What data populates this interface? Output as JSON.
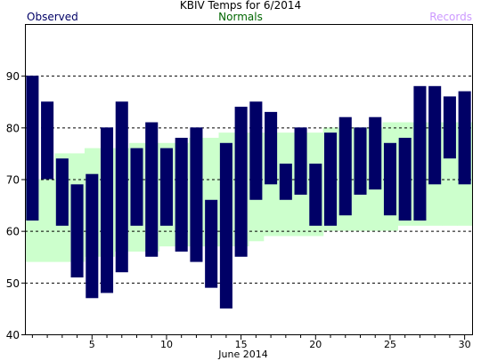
{
  "chart_data": {
    "type": "bar",
    "title": "KBIV Temps for 6/2014",
    "xlabel": "June 2014",
    "ylabel": "",
    "legend": {
      "observed": "Observed",
      "normals": "Normals",
      "records": "Records"
    },
    "colors": {
      "observed": "#000066",
      "normals_band": "#ccffcc",
      "normals_text": "#006600",
      "records_text": "#cc99ff",
      "grid": "#000000"
    },
    "xlim": [
      0.5,
      30.5
    ],
    "ylim": [
      40,
      100
    ],
    "xticks": [
      5,
      10,
      15,
      20,
      25,
      30
    ],
    "yticks": [
      40,
      50,
      60,
      70,
      80,
      90
    ],
    "grid_lines": [
      50,
      60,
      70,
      80,
      90
    ],
    "days": [
      1,
      2,
      3,
      4,
      5,
      6,
      7,
      8,
      9,
      10,
      11,
      12,
      13,
      14,
      15,
      16,
      17,
      18,
      19,
      20,
      21,
      22,
      23,
      24,
      25,
      26,
      27,
      28,
      29,
      30
    ],
    "observed_high": [
      90,
      85,
      74,
      69,
      71,
      80,
      85,
      76,
      81,
      76,
      78,
      80,
      66,
      77,
      84,
      85,
      83,
      73,
      80,
      73,
      79,
      82,
      80,
      82,
      77,
      78,
      88,
      88,
      86,
      87
    ],
    "observed_low": [
      62,
      70,
      61,
      51,
      47,
      48,
      52,
      61,
      55,
      61,
      56,
      54,
      49,
      45,
      55,
      66,
      69,
      66,
      67,
      61,
      61,
      63,
      67,
      68,
      63,
      62,
      62,
      69,
      74,
      69
    ],
    "normal_high": [
      70,
      70,
      75,
      75,
      76,
      76,
      76,
      77,
      77,
      77,
      77,
      78,
      78,
      79,
      79,
      79,
      79,
      79,
      79,
      79,
      80,
      80,
      80,
      80,
      81,
      81,
      81,
      81,
      81,
      81
    ],
    "normal_low": [
      54,
      54,
      54,
      54,
      55,
      55,
      56,
      56,
      56,
      57,
      57,
      57,
      57,
      57,
      57,
      58,
      59,
      59,
      59,
      59,
      60,
      60,
      60,
      60,
      60,
      61,
      61,
      61,
      61,
      61
    ]
  }
}
